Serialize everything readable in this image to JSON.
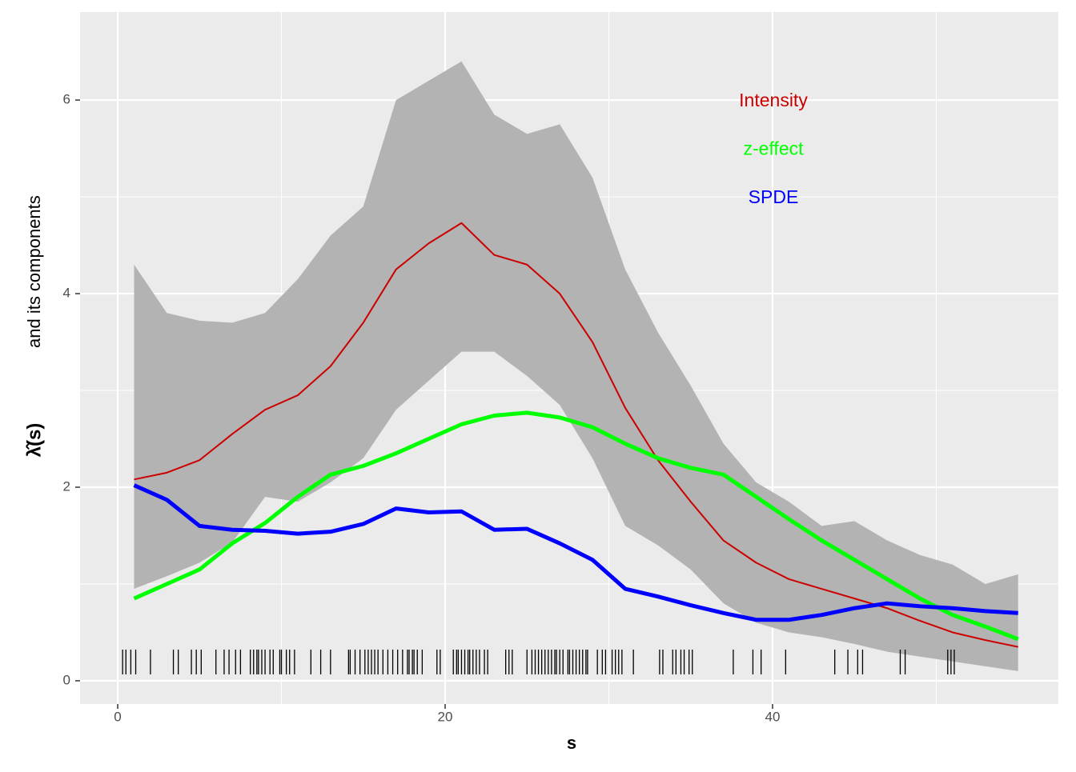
{
  "chart_data": {
    "type": "line",
    "x_label": "s",
    "y_label_math": "λ̂(s)",
    "y_label": "and its components",
    "x": [
      1,
      3,
      5,
      7,
      9,
      11,
      13,
      15,
      17,
      19,
      21,
      23,
      25,
      27,
      29,
      31,
      33,
      35,
      37,
      39,
      41,
      43,
      45,
      47,
      49,
      51,
      53,
      55
    ],
    "band": {
      "color": "#b3b3b3",
      "lower": [
        0.95,
        1.08,
        1.22,
        1.43,
        1.9,
        1.85,
        2.05,
        2.3,
        2.8,
        3.1,
        3.4,
        3.4,
        3.15,
        2.85,
        2.3,
        1.6,
        1.4,
        1.15,
        0.8,
        0.6,
        0.5,
        0.45,
        0.38,
        0.3,
        0.25,
        0.2,
        0.15,
        0.1
      ],
      "upper": [
        4.3,
        3.8,
        3.72,
        3.7,
        3.8,
        4.15,
        4.6,
        4.9,
        6.0,
        6.2,
        6.4,
        5.85,
        5.65,
        5.75,
        5.2,
        4.25,
        3.6,
        3.05,
        2.45,
        2.05,
        1.85,
        1.6,
        1.65,
        1.45,
        1.3,
        1.2,
        1.0,
        1.1
      ]
    },
    "series": [
      {
        "name": "Intensity",
        "color": "#cc0000",
        "width": 2,
        "values": [
          2.08,
          2.15,
          2.28,
          2.55,
          2.8,
          2.95,
          3.25,
          3.7,
          4.25,
          4.52,
          4.73,
          4.4,
          4.3,
          4.0,
          3.5,
          2.82,
          2.28,
          1.85,
          1.45,
          1.22,
          1.05,
          0.95,
          0.85,
          0.75,
          0.62,
          0.5,
          0.42,
          0.35
        ]
      },
      {
        "name": "z-effect",
        "color": "#00ff00",
        "width": 5,
        "values": [
          0.85,
          1.0,
          1.15,
          1.42,
          1.63,
          1.9,
          2.13,
          2.22,
          2.35,
          2.5,
          2.65,
          2.74,
          2.77,
          2.72,
          2.62,
          2.45,
          2.3,
          2.2,
          2.13,
          1.9,
          1.67,
          1.45,
          1.25,
          1.05,
          0.85,
          0.68,
          0.56,
          0.43
        ]
      },
      {
        "name": "SPDE",
        "color": "#0000ff",
        "width": 5,
        "values": [
          2.02,
          1.87,
          1.6,
          1.56,
          1.55,
          1.52,
          1.54,
          1.62,
          1.78,
          1.74,
          1.75,
          1.56,
          1.57,
          1.42,
          1.25,
          0.95,
          0.87,
          0.78,
          0.7,
          0.63,
          0.63,
          0.68,
          0.75,
          0.8,
          0.77,
          0.75,
          0.72,
          0.7
        ]
      }
    ],
    "rug": [
      0.3,
      0.5,
      0.8,
      1.1,
      2.0,
      3.4,
      3.7,
      4.5,
      4.8,
      5.1,
      6.0,
      6.5,
      6.8,
      7.2,
      7.5,
      8.1,
      8.3,
      8.5,
      8.6,
      8.8,
      9.0,
      9.3,
      9.5,
      9.9,
      10.0,
      10.3,
      10.5,
      10.8,
      11.8,
      12.4,
      13.0,
      14.1,
      14.2,
      14.5,
      14.8,
      15.1,
      15.3,
      15.5,
      15.7,
      15.9,
      16.2,
      16.5,
      16.8,
      17.1,
      17.4,
      17.7,
      17.8,
      18.0,
      18.1,
      18.3,
      18.6,
      19.5,
      19.7,
      20.5,
      20.7,
      20.8,
      21.0,
      21.2,
      21.4,
      21.5,
      21.7,
      21.9,
      22.1,
      22.4,
      22.6,
      23.7,
      23.9,
      24.1,
      25.0,
      25.3,
      25.5,
      25.7,
      25.9,
      26.1,
      26.3,
      26.5,
      26.7,
      26.8,
      27.0,
      27.2,
      27.5,
      27.6,
      27.8,
      28.0,
      28.2,
      28.4,
      28.6,
      28.7,
      29.3,
      29.6,
      29.8,
      30.2,
      30.4,
      30.6,
      30.8,
      31.5,
      33.1,
      33.3,
      33.9,
      34.1,
      34.4,
      34.6,
      34.9,
      35.1,
      37.6,
      38.8,
      39.3,
      40.8,
      43.8,
      44.6,
      45.2,
      45.5,
      47.8,
      48.1,
      50.7,
      50.9,
      51.1
    ],
    "xlim": [
      -2.3,
      57.46
    ],
    "ylim": [
      -0.24,
      6.91
    ],
    "xticks": [
      0,
      20,
      40
    ],
    "yticks": [
      0,
      2,
      4,
      6
    ],
    "minor_xticks": [
      10,
      30,
      50
    ],
    "minor_yticks": [
      1,
      3,
      5
    ],
    "grid": true
  }
}
